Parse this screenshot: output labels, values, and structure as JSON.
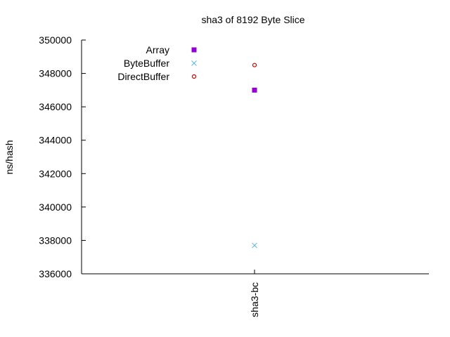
{
  "chart_data": {
    "type": "scatter",
    "title": "sha3 of 8192 Byte Slice",
    "xlabel": "",
    "ylabel": "ns/hash",
    "categories": [
      "sha3-bc"
    ],
    "ylim": [
      336000,
      350000
    ],
    "yticks": [
      336000,
      338000,
      340000,
      342000,
      344000,
      346000,
      348000,
      350000
    ],
    "grid": false,
    "legend_position": "top-left",
    "series": [
      {
        "name": "Array",
        "marker": "filled-square",
        "color": "#9400d3",
        "values": [
          347000
        ]
      },
      {
        "name": "ByteBuffer",
        "marker": "cross",
        "color": "#56b4e9",
        "values": [
          337700
        ]
      },
      {
        "name": "DirectBuffer",
        "marker": "open-circle",
        "color": "#cc0000",
        "values": [
          348500
        ]
      }
    ]
  }
}
